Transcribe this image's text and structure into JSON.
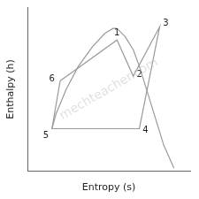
{
  "chart_data": {
    "type": "line",
    "xlabel": "Entropy (s)",
    "ylabel": "Enthalpy (h)",
    "xlim": [
      0.08,
      0.88
    ],
    "ylim": [
      0.02,
      1.02
    ],
    "tick_labels": false,
    "grid": false,
    "series": [
      {
        "color": "#999999",
        "x": [
          0.2,
          0.22,
          0.27,
          0.33,
          0.4,
          0.46,
          0.5,
          0.52
        ],
        "values": [
          0.28,
          0.37,
          0.52,
          0.66,
          0.78,
          0.86,
          0.89,
          0.89
        ]
      },
      {
        "color": "#999999",
        "x": [
          0.52,
          0.56,
          0.6,
          0.63,
          0.66,
          0.7,
          0.75,
          0.8
        ],
        "values": [
          0.89,
          0.84,
          0.76,
          0.66,
          0.54,
          0.38,
          0.18,
          0.04
        ]
      },
      {
        "color": "#999999",
        "x": [
          0.24,
          0.52,
          0.6,
          0.73,
          0.63,
          0.2,
          0.24
        ],
        "values": [
          0.57,
          0.82,
          0.6,
          0.9,
          0.28,
          0.28,
          0.57
        ]
      }
    ],
    "annotations": [
      {
        "text": "1",
        "x": 0.52,
        "y": 0.86
      },
      {
        "text": "2",
        "x": 0.63,
        "y": 0.61
      },
      {
        "text": "3",
        "x": 0.76,
        "y": 0.92
      },
      {
        "text": "4",
        "x": 0.66,
        "y": 0.27
      },
      {
        "text": "5",
        "x": 0.17,
        "y": 0.24
      },
      {
        "text": "6",
        "x": 0.2,
        "y": 0.58
      },
      {
        "text": "mechteacher.com",
        "color": "#cccccc"
      }
    ]
  }
}
